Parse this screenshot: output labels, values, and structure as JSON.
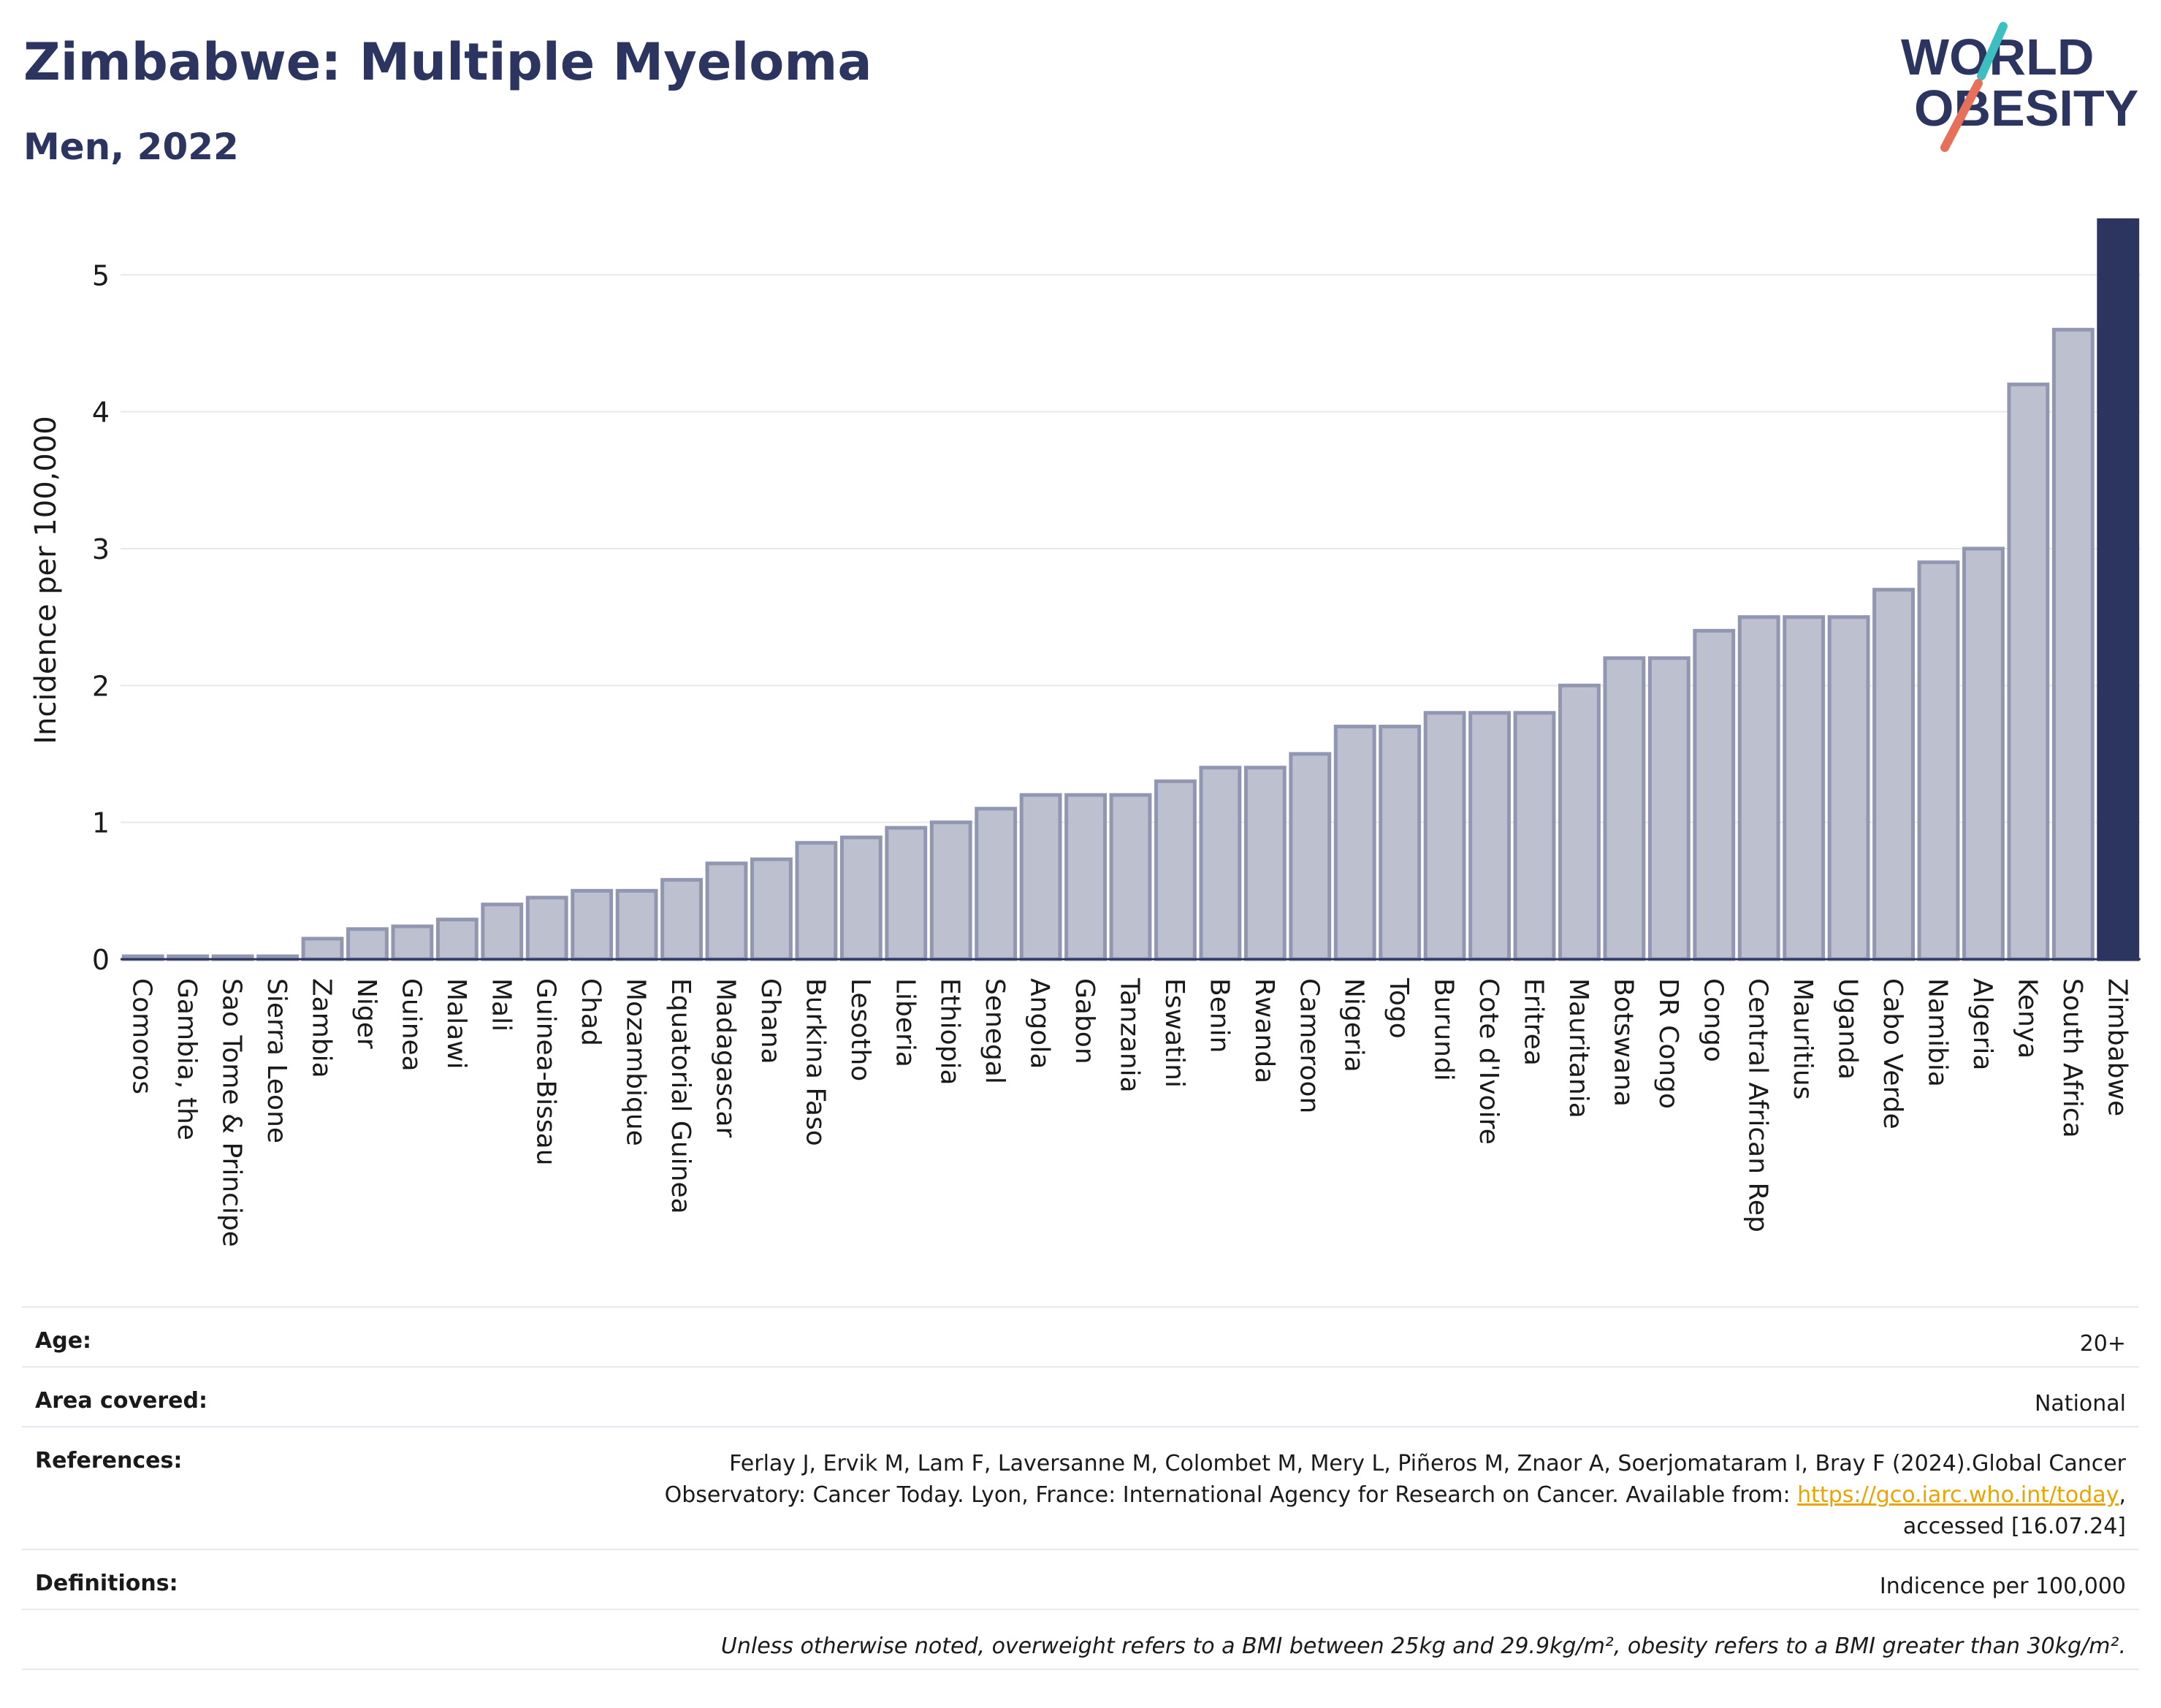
{
  "header": {
    "title": "Zimbabwe: Multiple Myeloma",
    "subtitle": "Men, 2022"
  },
  "logo": {
    "line1": "WORLD",
    "line2": "OBESITY",
    "accent_colors": [
      "#3cbfbe",
      "#e8705a"
    ]
  },
  "colors": {
    "bar_default": "#bdc0cf",
    "bar_border": "#9297b1",
    "bar_highlight": "#2b3560",
    "title": "#2b3560",
    "grid": "#e6e8ef"
  },
  "chart_data": {
    "type": "bar",
    "ylabel": "Incidence per 100,000",
    "xlabel": "",
    "ylim": [
      0,
      5.45
    ],
    "yticks": [
      0,
      1,
      2,
      3,
      4,
      5
    ],
    "grid": true,
    "highlight": "Zimbabwe",
    "categories": [
      "Comoros",
      "Gambia, the",
      "Sao Tome & Principe",
      "Sierra Leone",
      "Zambia",
      "Niger",
      "Guinea",
      "Malawi",
      "Mali",
      "Guinea-Bissau",
      "Chad",
      "Mozambique",
      "Equatorial Guinea",
      "Madagascar",
      "Ghana",
      "Burkina Faso",
      "Lesotho",
      "Liberia",
      "Ethiopia",
      "Senegal",
      "Angola",
      "Gabon",
      "Tanzania",
      "Eswatini",
      "Benin",
      "Rwanda",
      "Cameroon",
      "Nigeria",
      "Togo",
      "Burundi",
      "Cote d'Ivoire",
      "Eritrea",
      "Mauritania",
      "Botswana",
      "DR Congo",
      "Congo",
      "Central African Rep",
      "Mauritius",
      "Uganda",
      "Cabo Verde",
      "Namibia",
      "Algeria",
      "Kenya",
      "South Africa",
      "Zimbabwe"
    ],
    "values": [
      0.02,
      0.02,
      0.02,
      0.02,
      0.15,
      0.22,
      0.24,
      0.29,
      0.4,
      0.45,
      0.5,
      0.5,
      0.58,
      0.7,
      0.73,
      0.85,
      0.89,
      0.96,
      1.0,
      1.1,
      1.2,
      1.2,
      1.2,
      1.3,
      1.4,
      1.4,
      1.5,
      1.7,
      1.7,
      1.8,
      1.8,
      1.8,
      2.0,
      2.2,
      2.2,
      2.4,
      2.5,
      2.5,
      2.5,
      2.7,
      2.9,
      3.0,
      4.2,
      4.6,
      5.4
    ]
  },
  "info": {
    "age_label": "Age:",
    "age_value": "20+",
    "area_label": "Area covered:",
    "area_value": "National",
    "references_label": "References:",
    "references_line1": "Ferlay J, Ervik M, Lam F, Laversanne M, Colombet M, Mery L, Piñeros M, Znaor A, Soerjomataram I, Bray F (2024).Global Cancer",
    "references_line2_pre": "Observatory: Cancer Today. Lyon, France: International Agency for Research on Cancer. Available from: ",
    "references_link": "https://gco.iarc.who.int/today",
    "references_line2_post": ",",
    "references_line3": "accessed [16.07.24]",
    "definitions_label": "Definitions:",
    "definitions_value": "Indicence per 100,000",
    "note": "Unless otherwise noted, overweight refers to a BMI between 25kg and 29.9kg/m², obesity refers to a BMI greater than 30kg/m²."
  }
}
